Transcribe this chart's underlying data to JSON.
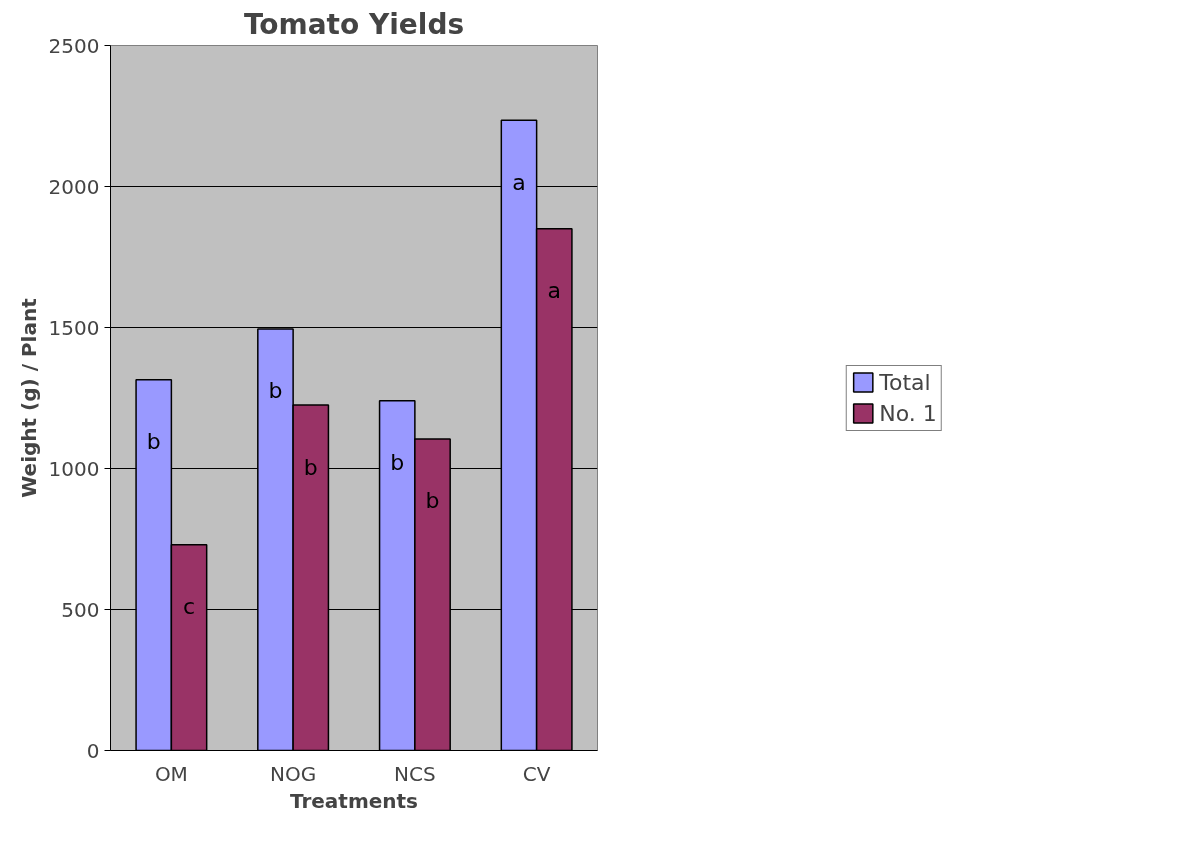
{
  "chart_data": {
    "type": "bar",
    "title": "Tomato Yields",
    "xlabel": "Treatments",
    "ylabel": "Weight (g) / Plant",
    "categories": [
      "OM",
      "NOG",
      "NCS",
      "CV"
    ],
    "series": [
      {
        "name": "Total",
        "color": "#9999ff",
        "values": [
          1315,
          1495,
          1240,
          2235
        ],
        "value_labels": [
          "b",
          "b",
          "b",
          "a"
        ]
      },
      {
        "name": "No. 1",
        "color": "#993366",
        "values": [
          730,
          1225,
          1105,
          1850
        ],
        "value_labels": [
          "c",
          "b",
          "b",
          "a"
        ]
      }
    ],
    "ylim": [
      0,
      2500
    ],
    "yticks": [
      0,
      500,
      1000,
      1500,
      2000,
      2500
    ],
    "grid": "y",
    "legend": "right"
  }
}
